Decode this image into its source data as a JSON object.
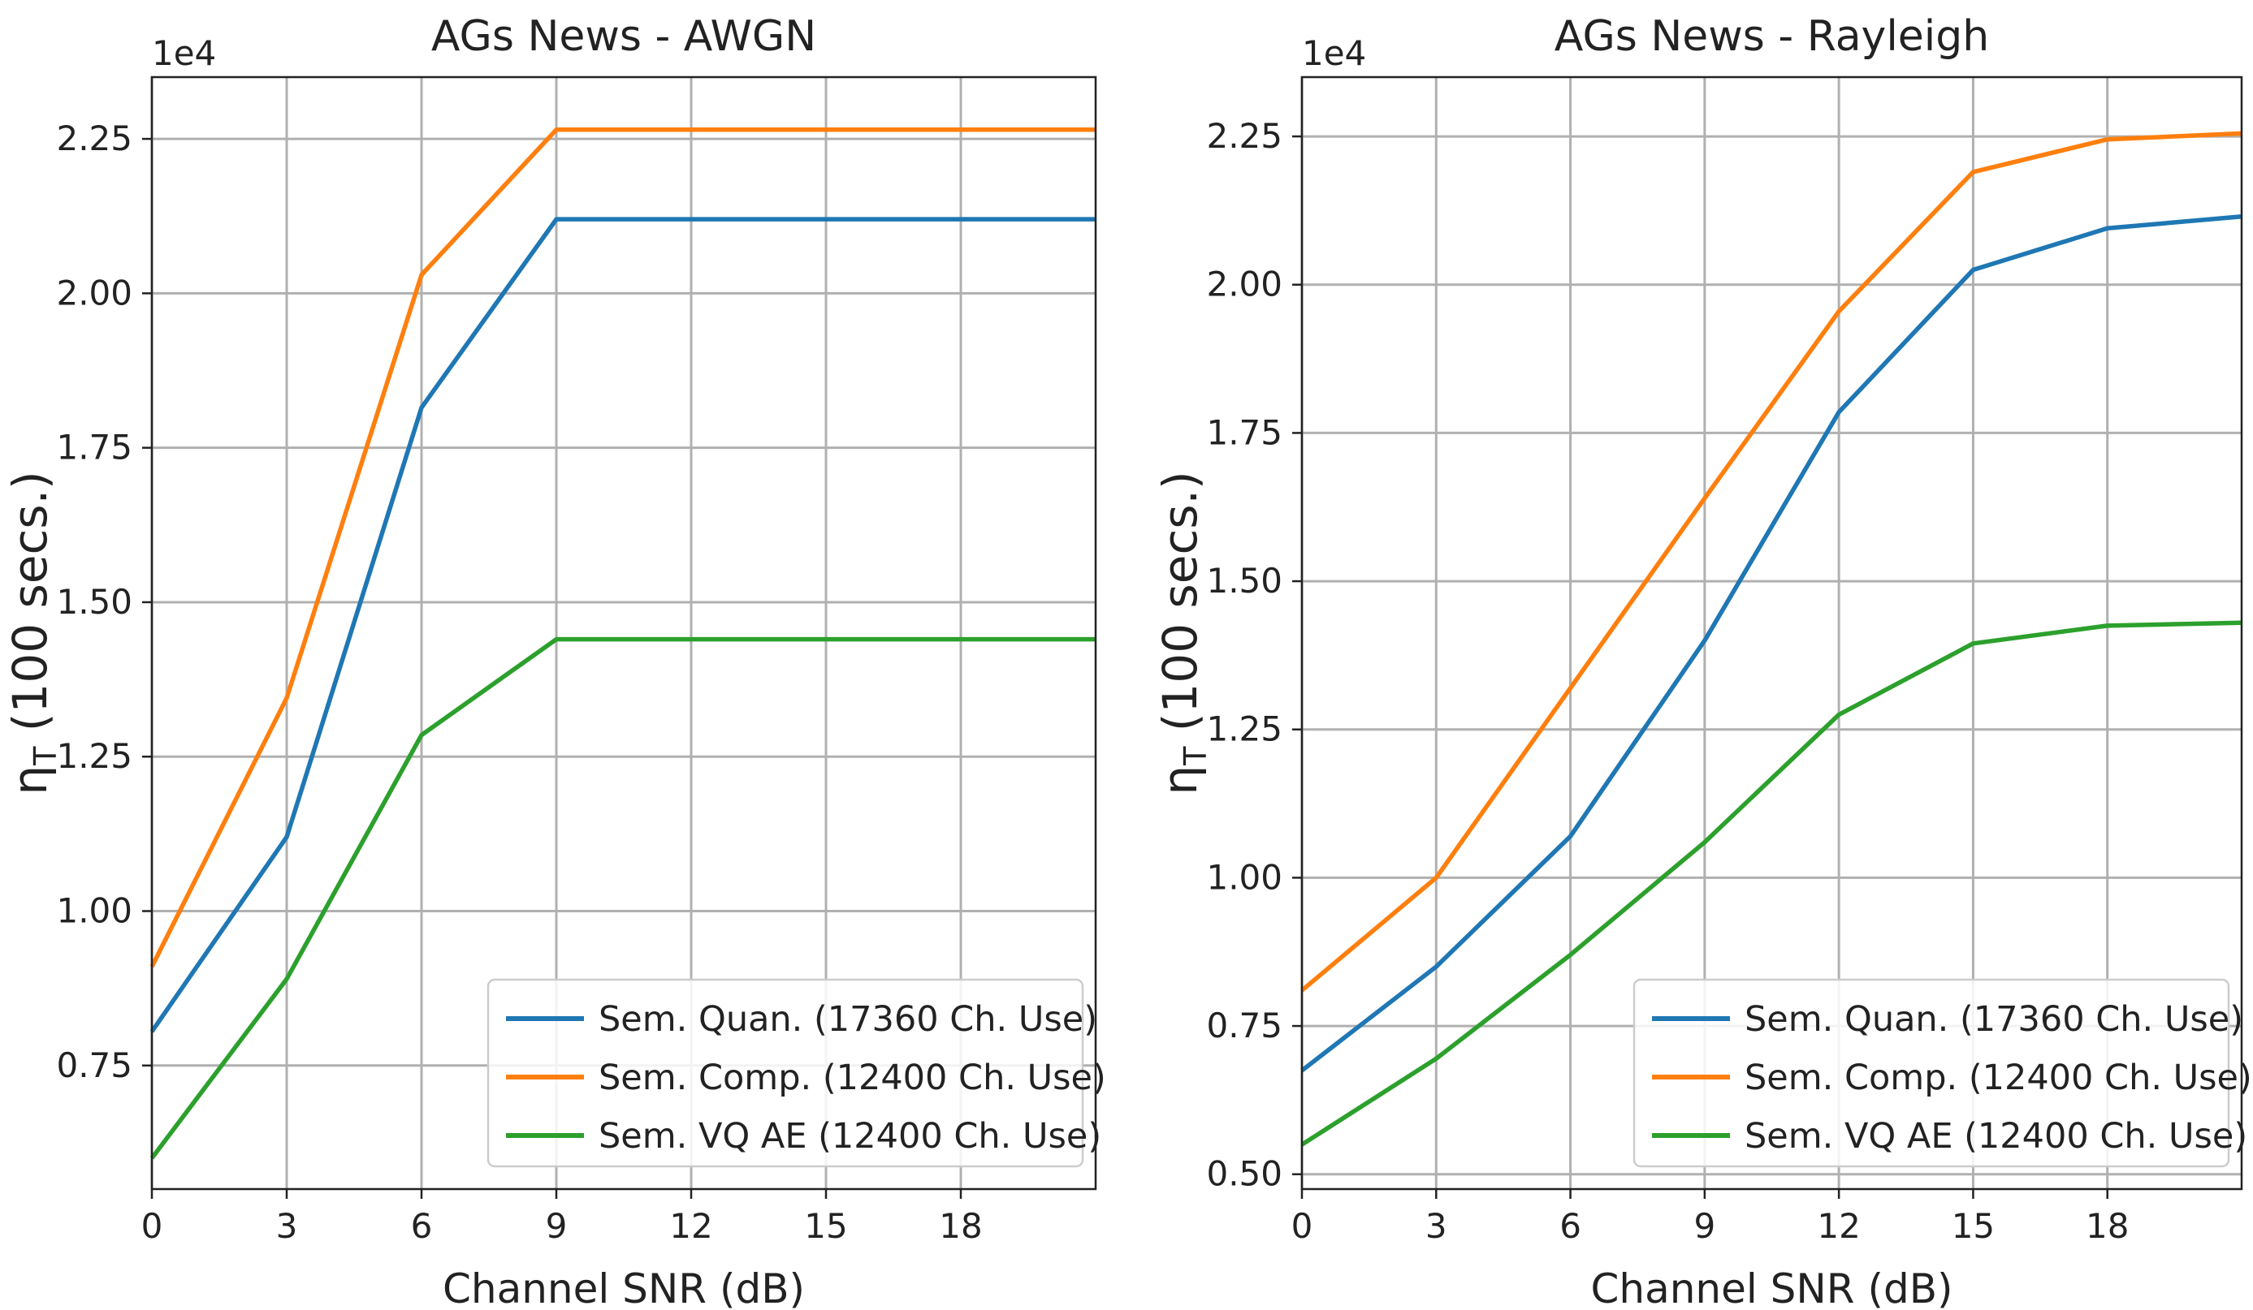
{
  "chart_data": [
    {
      "type": "line",
      "title": "AGs News - AWGN",
      "xlabel": "Channel SNR (dB)",
      "ylabel_main": "η",
      "ylabel_sub": "T",
      "ylabel_rest": " (100 secs.)",
      "offset_text": "1e4",
      "x": [
        0,
        3,
        6,
        9,
        12,
        15,
        18,
        21
      ],
      "xlim": [
        0,
        21
      ],
      "ylim": [
        0.55,
        2.35
      ],
      "xticks": [
        0,
        3,
        6,
        9,
        12,
        15,
        18
      ],
      "xtick_labels": [
        "0",
        "3",
        "6",
        "9",
        "12",
        "15",
        "18"
      ],
      "yticks": [
        0.75,
        1.0,
        1.25,
        1.5,
        1.75,
        2.0,
        2.25
      ],
      "ytick_labels": [
        "0.75",
        "1.00",
        "1.25",
        "1.50",
        "1.75",
        "2.00",
        "2.25"
      ],
      "grid": true,
      "legend_position": "lower-right",
      "series": [
        {
          "name": "Sem. Quan. (17360 Ch. Use)",
          "color": "#1f77b4",
          "values": [
            0.805,
            1.12,
            1.815,
            2.12,
            2.12,
            2.12,
            2.12,
            2.12
          ]
        },
        {
          "name": "Sem. Comp. (12400 Ch. Use)",
          "color": "#ff7f0e",
          "values": [
            0.91,
            1.345,
            2.03,
            2.265,
            2.265,
            2.265,
            2.265,
            2.265
          ]
        },
        {
          "name": "Sem. VQ AE (12400 Ch. Use)",
          "color": "#2ca02c",
          "values": [
            0.6,
            0.89,
            1.285,
            1.44,
            1.44,
            1.44,
            1.44,
            1.44
          ]
        }
      ]
    },
    {
      "type": "line",
      "title": "AGs News - Rayleigh",
      "xlabel": "Channel SNR (dB)",
      "ylabel_main": "η",
      "ylabel_sub": "T",
      "ylabel_rest": " (100 secs.)",
      "offset_text": "1e4",
      "x": [
        0,
        3,
        6,
        9,
        12,
        15,
        18,
        21
      ],
      "xlim": [
        0,
        21
      ],
      "ylim": [
        0.475,
        2.35
      ],
      "xticks": [
        0,
        3,
        6,
        9,
        12,
        15,
        18
      ],
      "xtick_labels": [
        "0",
        "3",
        "6",
        "9",
        "12",
        "15",
        "18"
      ],
      "yticks": [
        0.5,
        0.75,
        1.0,
        1.25,
        1.5,
        1.75,
        2.0,
        2.25
      ],
      "ytick_labels": [
        "0.50",
        "0.75",
        "1.00",
        "1.25",
        "1.50",
        "1.75",
        "2.00",
        "2.25"
      ],
      "grid": true,
      "legend_position": "lower-right",
      "series": [
        {
          "name": "Sem. Quan. (17360 Ch. Use)",
          "color": "#1f77b4",
          "values": [
            0.675,
            0.85,
            1.07,
            1.4,
            1.785,
            2.025,
            2.095,
            2.115
          ]
        },
        {
          "name": "Sem. Comp. (12400 Ch. Use)",
          "color": "#ff7f0e",
          "values": [
            0.81,
            1.0,
            1.32,
            1.64,
            1.955,
            2.19,
            2.245,
            2.255
          ]
        },
        {
          "name": "Sem. VQ AE (12400 Ch. Use)",
          "color": "#2ca02c",
          "values": [
            0.55,
            0.695,
            0.87,
            1.06,
            1.275,
            1.395,
            1.425,
            1.43
          ]
        }
      ]
    }
  ]
}
